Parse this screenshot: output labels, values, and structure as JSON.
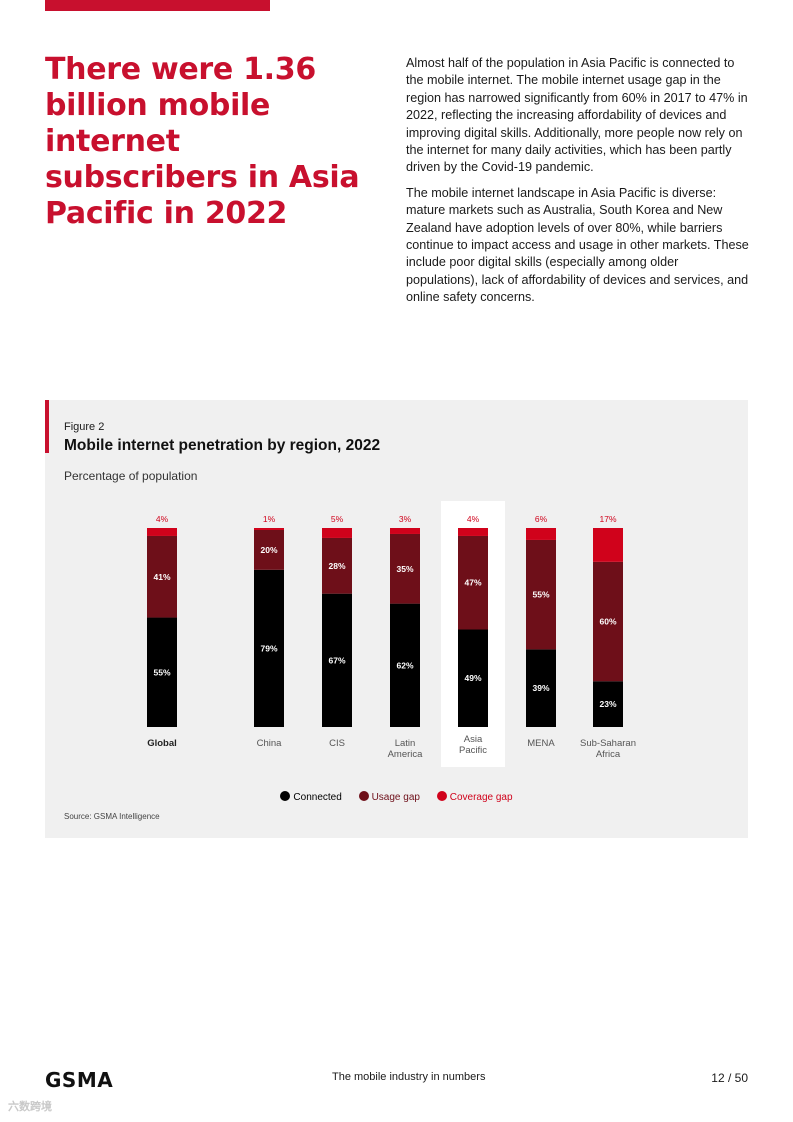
{
  "headline": "There were 1.36 billion mobile internet subscribers in Asia Pacific in 2022",
  "intro": {
    "paragraph_1": "Almost half of the population in Asia Pacific is connected to the mobile internet. The mobile internet usage gap in the region has narrowed significantly from 60% in 2017 to 47% in 2022, reflecting the increasing affordability of devices and improving digital skills. Additionally, more people now rely on the internet for many daily activities, which has been partly driven by the Covid-19 pandemic.",
    "paragraph_2": "The mobile internet landscape in Asia Pacific is diverse: mature markets such as Australia, South Korea and New Zealand have adoption levels of over 80%, while barriers continue to impact access and usage in other markets. These include poor digital skills (especially among older populations), lack of affordability of devices and services, and online safety concerns."
  },
  "figure": {
    "label": "Figure 2",
    "title": "Mobile internet penetration by region, 2022",
    "subtitle": "Percentage of population",
    "source": "Source: GSMA Intelligence"
  },
  "chart_data": {
    "type": "bar",
    "stacked": true,
    "title": "Mobile internet penetration by region, 2022",
    "ylabel": "Percentage of population",
    "ylim": [
      0,
      100
    ],
    "categories": [
      {
        "label": "Global",
        "lines": [
          "Global"
        ],
        "bold": true
      },
      {
        "label": "China",
        "lines": [
          "China"
        ]
      },
      {
        "label": "CIS",
        "lines": [
          "CIS"
        ]
      },
      {
        "label": "Latin America",
        "lines": [
          "Latin",
          "America"
        ]
      },
      {
        "label": "Asia Pacific",
        "lines": [
          "Asia",
          "Pacific"
        ],
        "highlight": true
      },
      {
        "label": "MENA",
        "lines": [
          "MENA"
        ]
      },
      {
        "label": "Sub-Saharan Africa",
        "lines": [
          "Sub-Saharan",
          "Africa"
        ]
      }
    ],
    "series": [
      {
        "name": "Connected",
        "color": "#000000",
        "values": [
          55,
          79,
          67,
          62,
          49,
          39,
          23
        ],
        "labels": [
          "55%",
          "79%",
          "67%",
          "62%",
          "49%",
          "39%",
          "23%"
        ]
      },
      {
        "name": "Usage gap",
        "color": "#6e0f19",
        "values": [
          41,
          20,
          28,
          35,
          47,
          55,
          60
        ],
        "labels": [
          "41%",
          "20%",
          "28%",
          "35%",
          "47%",
          "55%",
          "60%"
        ]
      },
      {
        "name": "Coverage gap",
        "color": "#d0021b",
        "values": [
          4,
          1,
          5,
          3,
          4,
          6,
          17
        ],
        "labels": [
          "4%",
          "1%",
          "5%",
          "3%",
          "4%",
          "6%",
          "17%"
        ]
      }
    ],
    "legend": [
      "Connected",
      "Usage gap",
      "Coverage gap"
    ]
  },
  "footer": {
    "logo": "GSMA",
    "title": "The mobile industry in numbers",
    "page": "12 / 50"
  },
  "watermark": "六数跨境",
  "colors": {
    "accent": "#c8102e",
    "connected": "#000000",
    "usage_gap": "#6e0f19",
    "coverage_gap": "#d0021b"
  }
}
